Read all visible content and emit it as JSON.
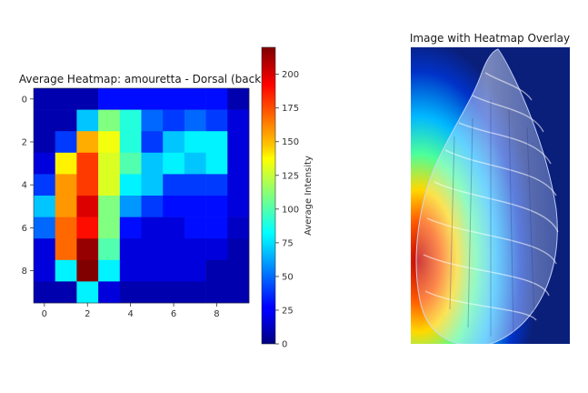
{
  "chart_data": [
    {
      "type": "heatmap",
      "title": "Average Heatmap: amouretta - Dorsal (back",
      "x_ticks": [
        0,
        2,
        4,
        6,
        8
      ],
      "y_ticks": [
        0,
        2,
        4,
        6,
        8
      ],
      "xlim": [
        -0.5,
        9.5
      ],
      "ylim": [
        9.5,
        -0.5
      ],
      "colormap": "jet",
      "colorbar": {
        "label": "Average Intensity",
        "range": [
          0,
          220
        ],
        "ticks": [
          0,
          25,
          50,
          75,
          100,
          125,
          150,
          175,
          200
        ]
      },
      "values": [
        [
          10,
          10,
          10,
          30,
          30,
          30,
          30,
          30,
          30,
          10
        ],
        [
          10,
          10,
          70,
          110,
          90,
          50,
          40,
          50,
          40,
          20
        ],
        [
          10,
          40,
          155,
          135,
          90,
          40,
          70,
          80,
          80,
          20
        ],
        [
          20,
          140,
          180,
          130,
          100,
          70,
          80,
          70,
          80,
          20
        ],
        [
          40,
          160,
          180,
          130,
          80,
          70,
          40,
          40,
          40,
          20
        ],
        [
          70,
          160,
          200,
          110,
          60,
          40,
          30,
          30,
          30,
          20
        ],
        [
          50,
          170,
          190,
          110,
          30,
          20,
          20,
          30,
          30,
          15
        ],
        [
          20,
          170,
          215,
          100,
          20,
          20,
          20,
          20,
          20,
          10
        ],
        [
          20,
          80,
          220,
          80,
          20,
          20,
          20,
          20,
          10,
          10
        ],
        [
          10,
          10,
          80,
          20,
          10,
          10,
          10,
          10,
          10,
          10
        ]
      ]
    },
    {
      "type": "image",
      "title": "Image with Heatmap Overlay"
    }
  ],
  "colors": {
    "overlay_background": "#0a1f7a",
    "shell_light": "#d9e6ff"
  },
  "icons": {
    "shell": "seashell-image"
  }
}
